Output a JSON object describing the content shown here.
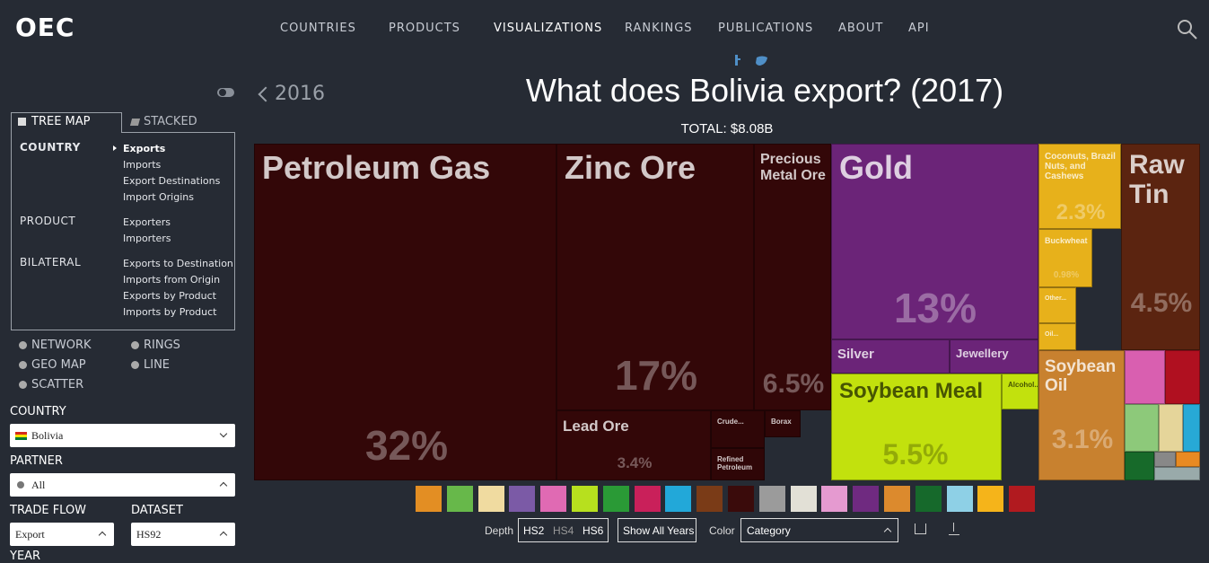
{
  "nav": {
    "logo": "OEC",
    "links": [
      "COUNTRIES",
      "PRODUCTS",
      "VISUALIZATIONS",
      "RANKINGS",
      "PUBLICATIONS",
      "ABOUT",
      "API"
    ]
  },
  "sidebar": {
    "tabs": [
      "TREE MAP",
      "STACKED"
    ],
    "groups": [
      {
        "label": "COUNTRY",
        "items": [
          "Exports",
          "Imports",
          "Export Destinations",
          "Import Origins"
        ]
      },
      {
        "label": "PRODUCT",
        "items": [
          "Exporters",
          "Importers"
        ]
      },
      {
        "label": "BILATERAL",
        "items": [
          "Exports to Destination",
          "Imports from Origin",
          "Exports by Product",
          "Imports by Product"
        ]
      }
    ],
    "other_views": [
      "NETWORK",
      "RINGS",
      "GEO MAP",
      "LINE",
      "SCATTER"
    ],
    "fields": [
      {
        "label": "COUNTRY",
        "value": "Bolivia"
      },
      {
        "label": "PARTNER",
        "value": "All"
      },
      {
        "label": "TRADE FLOW",
        "value": "Export"
      },
      {
        "label": "DATASET",
        "value": "HS92"
      }
    ],
    "next_field": "YEAR"
  },
  "header": {
    "prev": "2016",
    "title": "What does Bolivia export? (2017)",
    "total": "TOTAL: $8.08B"
  },
  "treemap": {
    "tiles": [
      {
        "label": "Petroleum Gas",
        "share": "32%"
      },
      {
        "label": "Zinc Ore",
        "share": "17%"
      },
      {
        "label": "Lead Ore",
        "share": "3.4%"
      },
      {
        "label": "Precious Metal Ore",
        "share": "6.5%"
      },
      {
        "label": "Crude..."
      },
      {
        "label": "Refined Petroleum"
      },
      {
        "label": "Borax"
      },
      {
        "label": "Gold",
        "share": "13%"
      },
      {
        "label": "Silver"
      },
      {
        "label": "Jewellery"
      },
      {
        "label": "Soybean Meal",
        "share": "5.5%"
      },
      {
        "label": "Alcohol..."
      },
      {
        "label": "Coconuts, Brazil Nuts, and Cashews",
        "share": "2.3%"
      },
      {
        "label": "Buckwheat",
        "share": "0.98%"
      },
      {
        "label": "Other..."
      },
      {
        "label": "Oil..."
      },
      {
        "label": "Raw Tin",
        "share": "4.5%"
      },
      {
        "label": "Soybean Oil",
        "share": "3.1%"
      }
    ]
  },
  "controls": {
    "depth_label": "Depth",
    "depths": [
      "HS2",
      "HS4",
      "HS6"
    ],
    "show_years": "Show All Years",
    "color_label": "Color",
    "color_value": "Category"
  }
}
